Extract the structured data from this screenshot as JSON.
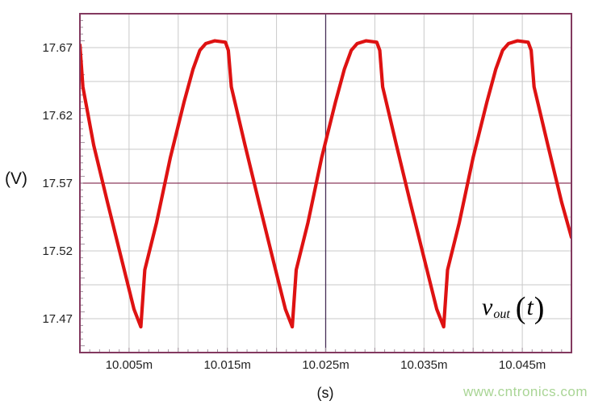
{
  "colors": {
    "curve": "#de1212",
    "grid": "#c9c9c9",
    "border": "#83395f",
    "crosshair_h": "#8c3a5e",
    "crosshair_v": "#483058",
    "tick": "#a2929e",
    "watermark": "#a9d595",
    "text": "#1a1a1a"
  },
  "watermark": {
    "text": "www.cntronics.com"
  },
  "annotation": {
    "v": "v",
    "sub": "out",
    "open": "(",
    "var": "t",
    "close": ")"
  },
  "chart_data": {
    "type": "line",
    "title": "",
    "xlabel": "(s)",
    "ylabel": "(V)",
    "xlim": [
      10.0,
      10.05
    ],
    "ylim": [
      17.445,
      17.695
    ],
    "x_ticks": [
      10.005,
      10.015,
      10.025,
      10.035,
      10.045
    ],
    "x_tick_labels": [
      "10.005m",
      "10.015m",
      "10.025m",
      "10.035m",
      "10.045m"
    ],
    "y_ticks": [
      17.47,
      17.52,
      17.57,
      17.62,
      17.67
    ],
    "y_tick_labels": [
      "17.47",
      "17.52",
      "17.57",
      "17.62",
      "17.67"
    ],
    "x_grid_step": 0.005,
    "y_grid_step": 0.025,
    "x_minor_tick_step": 0.001,
    "y_minor_tick_step": 0.005,
    "grid": true,
    "crosshair": {
      "x": 10.025,
      "y": 17.57
    },
    "legend_position": "none",
    "series": [
      {
        "name": "vout",
        "points": [
          [
            10.0,
            17.672
          ],
          [
            10.0003,
            17.641
          ],
          [
            10.0014,
            17.598
          ],
          [
            10.0028,
            17.556
          ],
          [
            10.0043,
            17.512
          ],
          [
            10.0055,
            17.477
          ],
          [
            10.0062,
            17.464
          ],
          [
            10.0066,
            17.506
          ],
          [
            10.0078,
            17.541
          ],
          [
            10.0092,
            17.589
          ],
          [
            10.0106,
            17.63
          ],
          [
            10.0115,
            17.654
          ],
          [
            10.0122,
            17.668
          ],
          [
            10.0128,
            17.673
          ],
          [
            10.0137,
            17.675
          ],
          [
            10.0148,
            17.674
          ],
          [
            10.0151,
            17.668
          ],
          [
            10.0154,
            17.641
          ],
          [
            10.0168,
            17.598
          ],
          [
            10.0182,
            17.556
          ],
          [
            10.0197,
            17.512
          ],
          [
            10.0209,
            17.477
          ],
          [
            10.0216,
            17.464
          ],
          [
            10.022,
            17.506
          ],
          [
            10.0232,
            17.541
          ],
          [
            10.0246,
            17.589
          ],
          [
            10.026,
            17.63
          ],
          [
            10.0269,
            17.654
          ],
          [
            10.0276,
            17.668
          ],
          [
            10.0282,
            17.673
          ],
          [
            10.0291,
            17.675
          ],
          [
            10.0302,
            17.674
          ],
          [
            10.0305,
            17.668
          ],
          [
            10.0308,
            17.641
          ],
          [
            10.0322,
            17.598
          ],
          [
            10.0336,
            17.556
          ],
          [
            10.0351,
            17.512
          ],
          [
            10.0363,
            17.477
          ],
          [
            10.037,
            17.464
          ],
          [
            10.0374,
            17.506
          ],
          [
            10.0386,
            17.541
          ],
          [
            10.04,
            17.589
          ],
          [
            10.0414,
            17.63
          ],
          [
            10.0423,
            17.654
          ],
          [
            10.043,
            17.668
          ],
          [
            10.0436,
            17.673
          ],
          [
            10.0445,
            17.675
          ],
          [
            10.0456,
            17.674
          ],
          [
            10.0459,
            17.668
          ],
          [
            10.0462,
            17.641
          ],
          [
            10.0476,
            17.598
          ],
          [
            10.049,
            17.556
          ],
          [
            10.05,
            17.53
          ]
        ]
      }
    ]
  }
}
